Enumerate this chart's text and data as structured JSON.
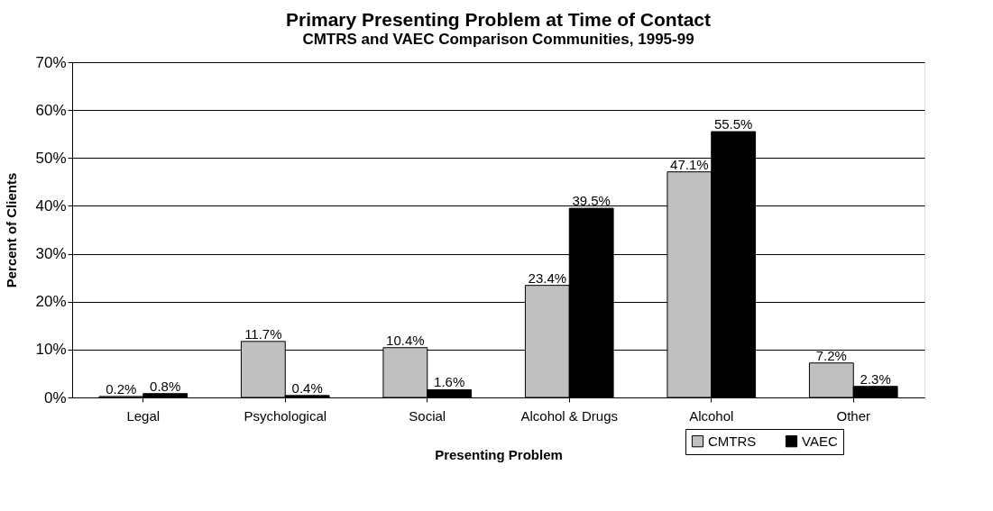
{
  "chart_data": {
    "type": "bar",
    "title": "Primary Presenting Problem at Time of Contact",
    "subtitle": "CMTRS and VAEC Comparison Communities, 1995-99",
    "xlabel": "Presenting Problem",
    "ylabel": "Percent of Clients",
    "categories": [
      "Legal",
      "Psychological",
      "Social",
      "Alcohol & Drugs",
      "Alcohol",
      "Other"
    ],
    "series": [
      {
        "name": "CMTRS",
        "color": "#c0c0c0",
        "values": [
          0.2,
          11.7,
          10.4,
          23.4,
          47.1,
          7.2
        ],
        "value_labels": [
          "0.2%",
          "11.7%",
          "10.4%",
          "23.4%",
          "47.1%",
          "7.2%"
        ]
      },
      {
        "name": "VAEC",
        "color": "#000000",
        "values": [
          0.8,
          0.4,
          1.6,
          39.5,
          55.5,
          2.3
        ],
        "value_labels": [
          "0.8%",
          "0.4%",
          "1.6%",
          "39.5%",
          "55.5%",
          "2.3%"
        ]
      }
    ],
    "ylim": [
      0,
      70
    ],
    "yticks": [
      {
        "value": 0,
        "label": "0%"
      },
      {
        "value": 10,
        "label": "10%"
      },
      {
        "value": 20,
        "label": "20%"
      },
      {
        "value": 30,
        "label": "30%"
      },
      {
        "value": 40,
        "label": "40%"
      },
      {
        "value": 50,
        "label": "50%"
      },
      {
        "value": 60,
        "label": "60%"
      },
      {
        "value": 70,
        "label": "70%"
      }
    ],
    "grid": "y",
    "legend": "bottom right"
  }
}
